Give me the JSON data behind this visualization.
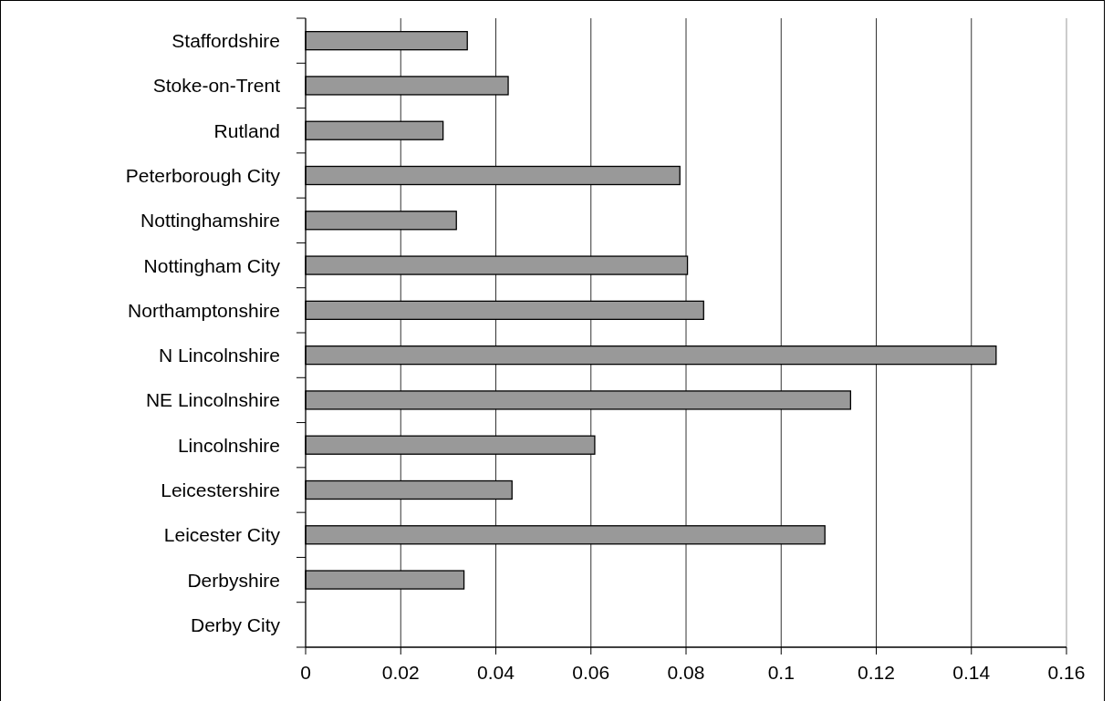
{
  "chart_data": {
    "type": "bar",
    "orientation": "horizontal",
    "categories": [
      "Staffordshire",
      "Stoke-on-Trent",
      "Rutland",
      "Peterborough City",
      "Nottinghamshire",
      "Nottingham City",
      "Northamptonshire",
      "N Lincolnshire",
      "NE Lincolnshire",
      "Lincolnshire",
      "Leicestershire",
      "Leicester City",
      "Derbyshire",
      "Derby City"
    ],
    "values": [
      0.034,
      0.0426,
      0.0289,
      0.0787,
      0.0317,
      0.0803,
      0.0837,
      0.1452,
      0.1146,
      0.0608,
      0.0434,
      0.1092,
      0.0333,
      0
    ],
    "color": "#999999",
    "xlim": [
      0,
      0.16
    ],
    "xticks": [
      0,
      0.02,
      0.04,
      0.06,
      0.08,
      0.1,
      0.12,
      0.14,
      0.16
    ],
    "grid": "x"
  }
}
